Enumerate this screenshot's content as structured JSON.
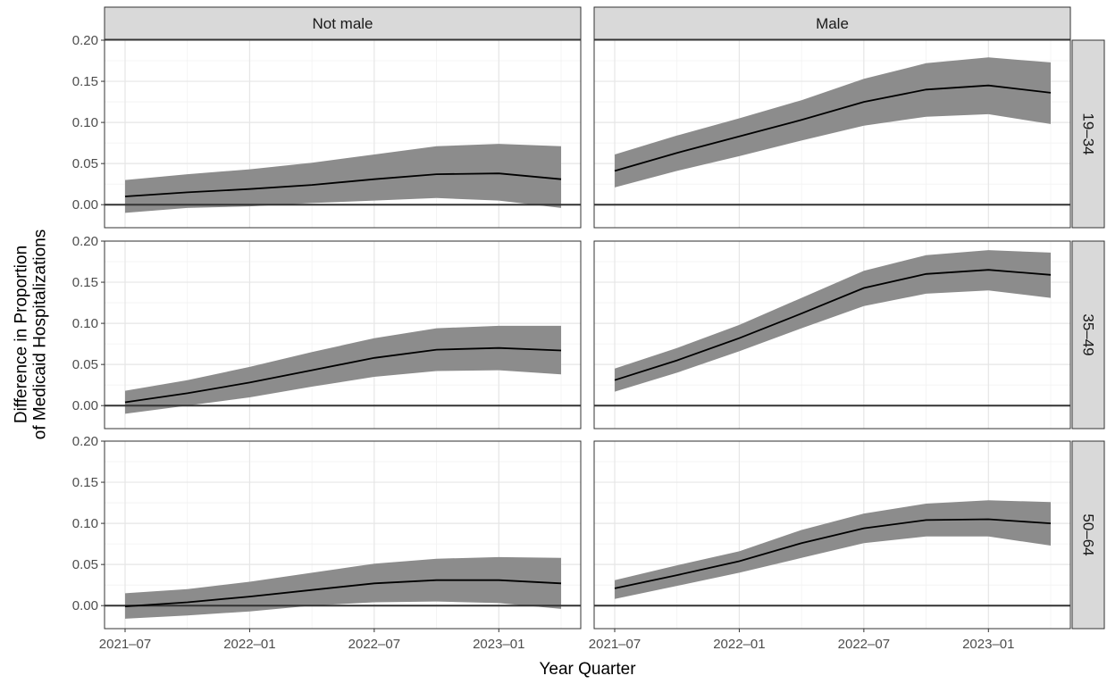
{
  "chart_data": {
    "type": "line",
    "title": "",
    "xlabel": "Year Quarter",
    "ylabel_lines": [
      "Difference in Proportion",
      "of Medicaid Hospitalizations"
    ],
    "ylim": [
      -0.028,
      0.2
    ],
    "y_ticks": [
      "0.00",
      "0.05",
      "0.10",
      "0.15",
      "0.20"
    ],
    "x_ticks": [
      "2021–07",
      "2022–01",
      "2022–07",
      "2023–01"
    ],
    "x_categories": [
      "2021-07",
      "2021-10",
      "2022-01",
      "2022-04",
      "2022-07",
      "2022-10",
      "2023-01",
      "2023-04"
    ],
    "x_tick_positions": [
      0,
      2,
      4,
      6
    ],
    "grid": true,
    "legend": "none",
    "reference_line_y": 0,
    "column_facets": [
      "Not male",
      "Male"
    ],
    "row_facets": [
      "19–34",
      "35–49",
      "50–64"
    ],
    "panels": [
      {
        "row": 0,
        "col": 0,
        "estimate": [
          0.01,
          0.015,
          0.019,
          0.024,
          0.031,
          0.037,
          0.038,
          0.031
        ],
        "lower": [
          -0.01,
          -0.004,
          -0.002,
          0.002,
          0.005,
          0.008,
          0.005,
          -0.004
        ],
        "upper": [
          0.03,
          0.037,
          0.043,
          0.051,
          0.061,
          0.071,
          0.074,
          0.071
        ]
      },
      {
        "row": 0,
        "col": 1,
        "estimate": [
          0.041,
          0.063,
          0.083,
          0.103,
          0.125,
          0.14,
          0.145,
          0.136
        ],
        "lower": [
          0.021,
          0.041,
          0.059,
          0.078,
          0.096,
          0.107,
          0.11,
          0.098
        ],
        "upper": [
          0.061,
          0.084,
          0.105,
          0.127,
          0.153,
          0.172,
          0.179,
          0.173
        ]
      },
      {
        "row": 1,
        "col": 0,
        "estimate": [
          0.004,
          0.015,
          0.028,
          0.043,
          0.058,
          0.068,
          0.07,
          0.067
        ],
        "lower": [
          -0.01,
          0.0,
          0.01,
          0.023,
          0.035,
          0.042,
          0.043,
          0.038
        ],
        "upper": [
          0.018,
          0.031,
          0.047,
          0.065,
          0.082,
          0.094,
          0.097,
          0.097
        ]
      },
      {
        "row": 1,
        "col": 1,
        "estimate": [
          0.031,
          0.055,
          0.082,
          0.112,
          0.143,
          0.16,
          0.165,
          0.159
        ],
        "lower": [
          0.017,
          0.04,
          0.066,
          0.094,
          0.121,
          0.136,
          0.14,
          0.131
        ],
        "upper": [
          0.045,
          0.07,
          0.098,
          0.131,
          0.164,
          0.183,
          0.189,
          0.186
        ]
      },
      {
        "row": 2,
        "col": 0,
        "estimate": [
          -0.001,
          0.004,
          0.011,
          0.019,
          0.027,
          0.031,
          0.031,
          0.027
        ],
        "lower": [
          -0.016,
          -0.012,
          -0.007,
          0.0,
          0.004,
          0.005,
          0.003,
          -0.004
        ],
        "upper": [
          0.015,
          0.02,
          0.029,
          0.04,
          0.051,
          0.057,
          0.059,
          0.058
        ]
      },
      {
        "row": 2,
        "col": 1,
        "estimate": [
          0.021,
          0.037,
          0.054,
          0.076,
          0.094,
          0.104,
          0.105,
          0.1
        ],
        "lower": [
          0.008,
          0.024,
          0.04,
          0.058,
          0.076,
          0.084,
          0.084,
          0.073
        ],
        "upper": [
          0.031,
          0.049,
          0.066,
          0.092,
          0.112,
          0.124,
          0.128,
          0.126
        ]
      }
    ]
  }
}
